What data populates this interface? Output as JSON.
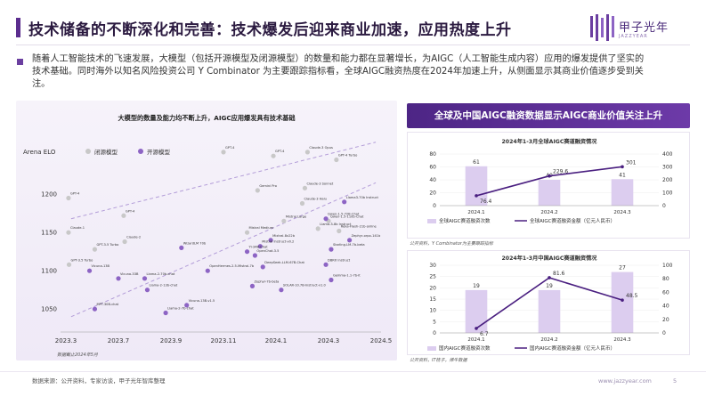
{
  "page": {
    "title": "技术储备的不断深化和完善：技术爆发后迎来商业加速，应用热度上升",
    "intro": "随着人工智能技术的飞速发展，大模型（包括开源模型及闭源模型）的数量和能力都在显著增长，为AIGC（人工智能生成内容）应用的爆发提供了坚实的技术基础。同时海外以知名风险投资公司 Y Combinator 为主要跟踪指标看，全球AIGC融资热度在2024年加速上升，从侧面显示其商业价值逐步受到关注。",
    "right_header": "全球及中国AIGC融资数据显示AIGC商业价值关注上升",
    "footer_source": "数据来源：公开资料，专家访谈，甲子光年智库整理",
    "footer_url": "www.jazzyear.com",
    "page_number": "5",
    "logo_text": "甲子光年",
    "logo_sub": "JAZZYEAR",
    "accent": "#5b2d8e",
    "accent_light": "#c9b3e3"
  },
  "chart_data": [
    {
      "type": "scatter",
      "title": "大模型的数量及能力均不断上升，AIGC应用爆发具有技术基础",
      "ylabel": "Arena ELO",
      "xlabel": "",
      "x_ticks": [
        "2023.3",
        "2023.7",
        "2023.9",
        "2023.11",
        "2024.1",
        "2024.3",
        "2024.5"
      ],
      "y_ticks": [
        1050,
        1100,
        1150,
        1200
      ],
      "ylim": [
        1020,
        1270
      ],
      "legend": [
        "闭源模型",
        "开源模型"
      ],
      "legend_placement": "top-left",
      "source_note": "数据截止2024年5月",
      "colors": {
        "closed": "#c8c8c8",
        "open": "#8d64c4",
        "trend": "#b39dd8"
      },
      "series": [
        {
          "name": "闭源模型",
          "points": [
            {
              "label": "GPT-4",
              "x": 0.05,
              "y": 1195
            },
            {
              "label": "GPT-4",
              "x": 1.1,
              "y": 1172
            },
            {
              "label": "Claude-1",
              "x": 0.05,
              "y": 1150
            },
            {
              "label": "Claude-2",
              "x": 1.12,
              "y": 1138
            },
            {
              "label": "GPT-3.5 Turbo",
              "x": 0.06,
              "y": 1108
            },
            {
              "label": "GPT-3.5 Turbo",
              "x": 0.55,
              "y": 1128
            },
            {
              "label": "GPT-4",
              "x": 3.0,
              "y": 1255
            },
            {
              "label": "GPT-4",
              "x": 3.95,
              "y": 1250
            },
            {
              "label": "Claude-3 Opus",
              "x": 4.6,
              "y": 1255
            },
            {
              "label": "GPT-4 Turbo",
              "x": 5.15,
              "y": 1245
            },
            {
              "label": "Claude-3 Sonnet",
              "x": 4.55,
              "y": 1208
            },
            {
              "label": "Gemini Pro",
              "x": 3.65,
              "y": 1205
            },
            {
              "label": "Claude-3 Haiu",
              "x": 4.5,
              "y": 1188
            },
            {
              "label": "Mistral Large",
              "x": 4.15,
              "y": 1165
            },
            {
              "label": "Mistral Medium",
              "x": 3.45,
              "y": 1150
            },
            {
              "label": "Llama-3-8b Instruct",
              "x": 4.8,
              "y": 1155
            },
            {
              "label": "Reka-Flash-21b-online",
              "x": 5.2,
              "y": 1152
            },
            {
              "label": "Qwen-1.5-110b-Chat",
              "x": 5.0,
              "y": 1165
            }
          ]
        },
        {
          "name": "开源模型",
          "points": [
            {
              "label": "Llama3-70b Instruct",
              "x": 5.3,
              "y": 1190
            },
            {
              "label": "Qwen-1.5-72B-Chat",
              "x": 4.95,
              "y": 1168
            },
            {
              "label": "Zephyr-orpo-141b",
              "x": 5.4,
              "y": 1140
            },
            {
              "label": "Starling-LM-7b-beta",
              "x": 5.05,
              "y": 1128
            },
            {
              "label": "Mixtral-8x22b",
              "x": 3.9,
              "y": 1140
            },
            {
              "label": "Mistral Instruct-v0.2",
              "x": 3.7,
              "y": 1132
            },
            {
              "label": "OpenChat-3.5",
              "x": 3.6,
              "y": 1120
            },
            {
              "label": "Yi-34B-Chat",
              "x": 3.45,
              "y": 1125
            },
            {
              "label": "OpenHermes-2.5-Mistral-7b",
              "x": 2.7,
              "y": 1100
            },
            {
              "label": "DeepSeek-LLM-67B-Chat",
              "x": 3.75,
              "y": 1105
            },
            {
              "label": "DBRX Instruct",
              "x": 4.95,
              "y": 1108
            },
            {
              "label": "Gemma-1.1-7b-it",
              "x": 5.05,
              "y": 1088
            },
            {
              "label": "SOLAR-10.7B-Instruct-v1.0",
              "x": 4.1,
              "y": 1075
            },
            {
              "label": "Zephyr-7b-beta",
              "x": 3.55,
              "y": 1080
            },
            {
              "label": "Vicuna-33B",
              "x": 1.0,
              "y": 1090
            },
            {
              "label": "WizardLM 70b",
              "x": 2.2,
              "y": 1130
            },
            {
              "label": "Llama-2-70b-chat",
              "x": 1.5,
              "y": 1090
            },
            {
              "label": "Llama-2-13b-chat",
              "x": 1.55,
              "y": 1075
            },
            {
              "label": "Vicuna-13B-v1.5",
              "x": 2.3,
              "y": 1055
            },
            {
              "label": "MPT-30B-chat",
              "x": 0.55,
              "y": 1050
            },
            {
              "label": "Llama-2-7b-chat",
              "x": 1.9,
              "y": 1045
            },
            {
              "label": "Vicuna-13B",
              "x": 0.45,
              "y": 1100
            }
          ]
        }
      ]
    },
    {
      "type": "bar",
      "title": "2024年1-3月全球AIGC赛道融资情况",
      "categories": [
        "2024.1",
        "2024.2",
        "2024.3"
      ],
      "series": [
        {
          "name": "全球AIGC赛道融资次数",
          "type": "bar",
          "values": [
            61,
            40,
            41
          ]
        },
        {
          "name": "全球AIGC赛道融资金额（亿元人民币）",
          "type": "line",
          "values": [
            76.4,
            229.6,
            301
          ]
        }
      ],
      "ylim_left": [
        0,
        80
      ],
      "ylim_right": [
        0,
        400
      ],
      "y_ticks_left": [
        0,
        20,
        40,
        60,
        80
      ],
      "y_ticks_right": [
        0,
        100,
        200,
        300,
        400
      ],
      "source_note": "公开资料，Y Combinator为主要跟踪指标",
      "colors": {
        "bar": "#dccdef",
        "line": "#4a1f80"
      }
    },
    {
      "type": "bar",
      "title": "2024年1-3月中国AIGC赛道融资情况",
      "categories": [
        "2024.1",
        "2024.2",
        "2024.3"
      ],
      "series": [
        {
          "name": "国内AIGC赛道融资次数",
          "type": "bar",
          "values": [
            19,
            19,
            27
          ]
        },
        {
          "name": "国内AIGC赛道融资金额（亿元人民币）",
          "type": "line",
          "values": [
            6.7,
            81.6,
            48.5
          ]
        }
      ],
      "ylim_left": [
        0,
        30
      ],
      "ylim_right": [
        0,
        100
      ],
      "y_ticks_left": [
        0,
        5,
        10,
        15,
        20,
        25,
        30
      ],
      "y_ticks_right": [
        0,
        20,
        40,
        60,
        80,
        100
      ],
      "source_note": "公开资料，IT桔子，烯牛数据",
      "colors": {
        "bar": "#dccdef",
        "line": "#4a1f80"
      }
    }
  ]
}
